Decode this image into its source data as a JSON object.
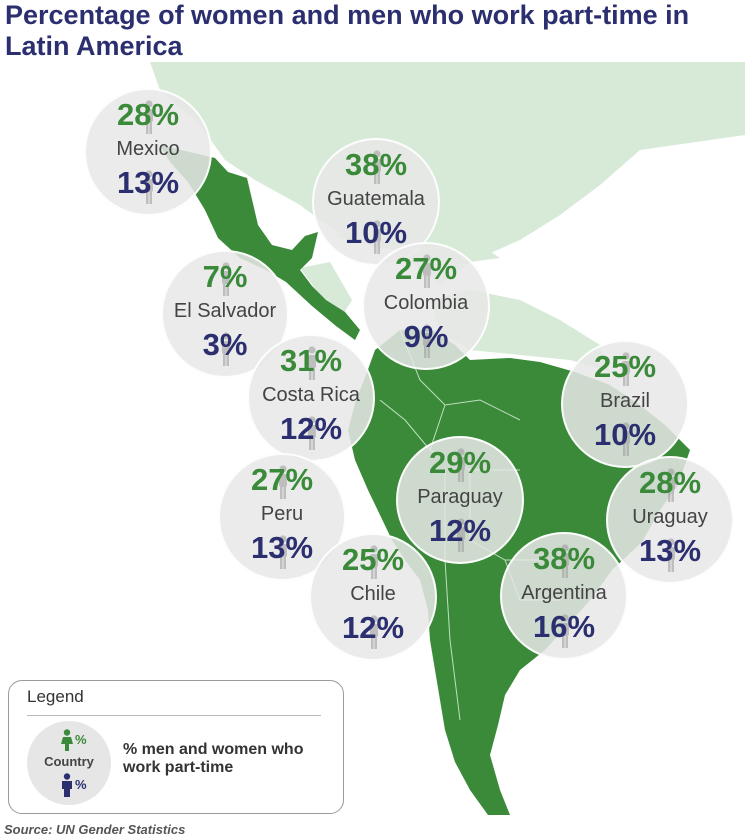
{
  "title": "Percentage of women and men who work part-time in Latin America",
  "colors": {
    "land_highlight": "#3a8a3a",
    "land_other": "#d7e9d7",
    "women": "#3a8a3a",
    "men": "#2b2e6f"
  },
  "countries": [
    {
      "name": "Mexico",
      "women": "28%",
      "men": "13%"
    },
    {
      "name": "Guatemala",
      "women": "38%",
      "men": "10%"
    },
    {
      "name": "El Salvador",
      "women": "7%",
      "men": "3%"
    },
    {
      "name": "Colombia",
      "women": "27%",
      "men": "9%"
    },
    {
      "name": "Costa Rica",
      "women": "31%",
      "men": "12%"
    },
    {
      "name": "Brazil",
      "women": "25%",
      "men": "10%"
    },
    {
      "name": "Peru",
      "women": "27%",
      "men": "13%"
    },
    {
      "name": "Paraguay",
      "women": "29%",
      "men": "12%"
    },
    {
      "name": "Uraguay",
      "women": "28%",
      "men": "13%"
    },
    {
      "name": "Chile",
      "women": "25%",
      "men": "12%"
    },
    {
      "name": "Argentina",
      "women": "38%",
      "men": "16%"
    }
  ],
  "legend": {
    "title": "Legend",
    "women_label": "%",
    "country_label": "Country",
    "men_label": "%",
    "description": "% men and women who work part-time"
  },
  "source": "Source: UN Gender Statistics"
}
